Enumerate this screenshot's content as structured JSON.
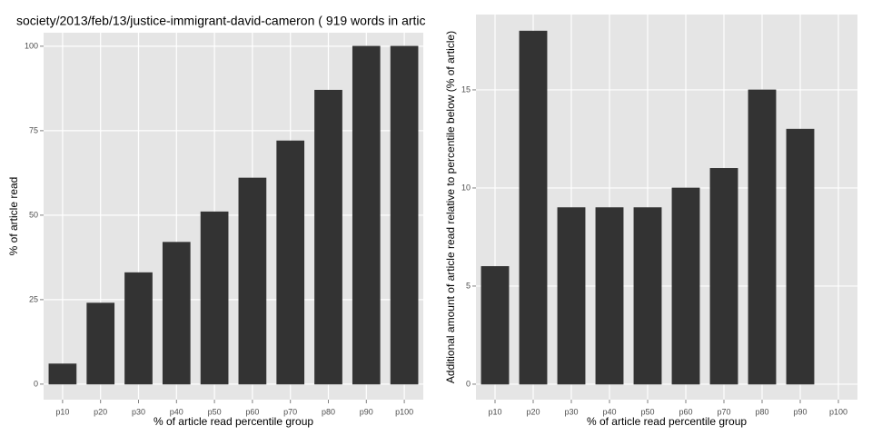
{
  "chart_data": [
    {
      "type": "bar",
      "title": "society/2013/feb/13/justice-immigrant-david-cameron ( 919 words in artic",
      "x_label": "% of article read percentile group",
      "y_label": "% of article read",
      "categories": [
        "p10",
        "p20",
        "p30",
        "p40",
        "p50",
        "p60",
        "p70",
        "p80",
        "p90",
        "p100"
      ],
      "values": [
        6,
        24,
        33,
        42,
        51,
        61,
        72,
        87,
        100,
        100
      ],
      "color": "#333333",
      "ylim": [
        -4.6,
        104
      ],
      "yticks": [
        0,
        25,
        50,
        75,
        100
      ],
      "grid": true
    },
    {
      "type": "bar",
      "x_label": "% of article read percentile group",
      "y_label": "Additional amount of article read relative to percentile below (% of article)",
      "categories": [
        "p10",
        "p20",
        "p30",
        "p40",
        "p50",
        "p60",
        "p70",
        "p80",
        "p90",
        "p100"
      ],
      "values": [
        6,
        18,
        9,
        9,
        9,
        10,
        11,
        15,
        13,
        0
      ],
      "color": "#333333",
      "ylim": [
        -0.79,
        18.84
      ],
      "yticks": [
        0,
        5,
        10,
        15
      ],
      "grid": true
    }
  ]
}
